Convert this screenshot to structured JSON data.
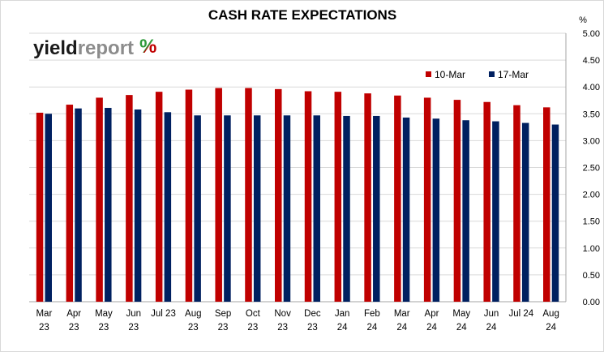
{
  "logo": {
    "part1": "yield",
    "part2": "report",
    "symbol": "%",
    "symbol_colors": [
      "#2e9b3a",
      "#c00000"
    ]
  },
  "chart_data": {
    "type": "bar",
    "title": "CASH RATE EXPECTATIONS",
    "ylabel": "%",
    "y_axis_position": "right",
    "ylim": [
      0,
      5
    ],
    "ytick_step": 0.5,
    "ytick_labels": [
      "0.00",
      "0.50",
      "1.00",
      "1.50",
      "2.00",
      "2.50",
      "3.00",
      "3.50",
      "4.00",
      "4.50",
      "5.00"
    ],
    "grid": true,
    "legend_position": "top-right",
    "categories": [
      [
        "Mar",
        "23"
      ],
      [
        "Apr",
        "23"
      ],
      [
        "May",
        "23"
      ],
      [
        "Jun",
        "23"
      ],
      [
        "Jul 23",
        ""
      ],
      [
        "Aug",
        "23"
      ],
      [
        "Sep",
        "23"
      ],
      [
        "Oct",
        "23"
      ],
      [
        "Nov",
        "23"
      ],
      [
        "Dec",
        "23"
      ],
      [
        "Jan",
        "24"
      ],
      [
        "Feb",
        "24"
      ],
      [
        "Mar",
        "24"
      ],
      [
        "Apr",
        "24"
      ],
      [
        "May",
        "24"
      ],
      [
        "Jun",
        "24"
      ],
      [
        "Jul 24",
        ""
      ],
      [
        "Aug",
        "24"
      ]
    ],
    "series": [
      {
        "name": "10-Mar",
        "color": "#c00000",
        "values": [
          3.52,
          3.67,
          3.8,
          3.85,
          3.91,
          3.95,
          3.98,
          3.98,
          3.96,
          3.92,
          3.91,
          3.88,
          3.84,
          3.8,
          3.76,
          3.72,
          3.66,
          3.62
        ]
      },
      {
        "name": "17-Mar",
        "color": "#002060",
        "values": [
          3.5,
          3.6,
          3.61,
          3.58,
          3.53,
          3.47,
          3.47,
          3.47,
          3.47,
          3.47,
          3.46,
          3.46,
          3.43,
          3.41,
          3.38,
          3.36,
          3.33,
          3.3
        ]
      }
    ]
  }
}
